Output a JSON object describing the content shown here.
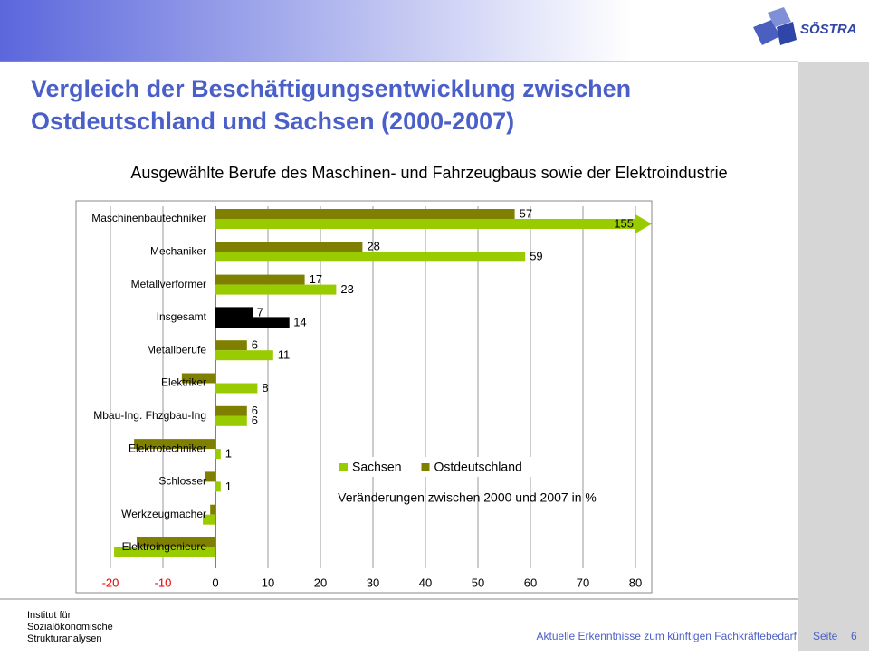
{
  "slide": {
    "logo": "SÖSTRA",
    "title_lines": [
      "Vergleich der Beschäftigungsentwicklung zwischen",
      "Ostdeutschland und Sachsen (2000-2007)"
    ],
    "footer_institute": [
      "Institut für",
      "Sozialökonomische",
      "Strukturanalysen"
    ],
    "footer_text": "Aktuelle Erkenntnisse zum künftigen Fachkräftebedarf",
    "page_label": "Seite",
    "page_number": "6"
  },
  "chart_data": {
    "type": "hbar",
    "title": "Ausgewählte Berufe des Maschinen- und Fahrzeugbaus sowie der Elektroindustrie",
    "x_label": "Veränderungen  zwischen 2000 und 2007  in %",
    "categories": [
      "Maschinenbautechniker",
      "Mechaniker",
      "Metallverformer",
      "Insgesamt",
      "Metallberufe",
      "Elektriker",
      "Mbau-Ing. Fhzgbau-Ing",
      "Elektrotechniker",
      "Schlosser",
      "Werkzeugmacher",
      "Elektroingenieure"
    ],
    "series": [
      {
        "name": "Sachsen",
        "color": "#99cc00",
        "values": [
          155,
          59,
          23,
          14,
          11,
          8,
          6,
          1,
          1,
          -2.4,
          -19.3
        ],
        "value_labels": [
          "155",
          "59",
          "23",
          "14",
          "11",
          "8",
          "6",
          "1",
          "1",
          null,
          null
        ]
      },
      {
        "name": "Ostdeutschland",
        "color": "#808000",
        "values": [
          57,
          28,
          17,
          7,
          6,
          -6.4,
          6,
          -15.5,
          -2,
          -1,
          -15
        ],
        "value_labels": [
          "57",
          "28",
          "17",
          "7",
          "6",
          null,
          "6",
          null,
          null,
          null,
          null
        ]
      }
    ],
    "hatched_index": 3,
    "xlim": [
      -20,
      80
    ],
    "xticks": [
      -20,
      -10,
      0,
      10,
      20,
      30,
      40,
      50,
      60,
      70,
      80
    ],
    "grid": true
  }
}
